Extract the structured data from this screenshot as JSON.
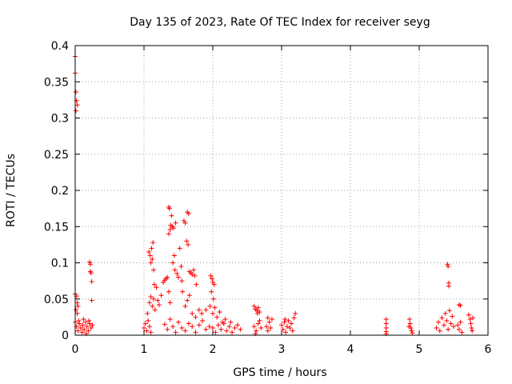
{
  "chart_data": {
    "type": "scatter",
    "title": "Day 135 of 2023, Rate Of TEC Index for receiver seyg",
    "xlabel": "GPS time / hours",
    "ylabel": "ROTI / TECUs",
    "xlim": [
      0,
      6
    ],
    "ylim": [
      0,
      0.4
    ],
    "x_ticks": [
      0,
      1,
      2,
      3,
      4,
      5,
      6
    ],
    "y_ticks": [
      0,
      0.05,
      0.1,
      0.15,
      0.2,
      0.25,
      0.3,
      0.35,
      0.4
    ],
    "x_tick_labels": [
      "0",
      "1",
      "2",
      "3",
      "4",
      "5",
      "6"
    ],
    "y_tick_labels": [
      "0",
      "0.05",
      "0.1",
      "0.15",
      "0.2",
      "0.25",
      "0.3",
      "0.35",
      "0.4"
    ],
    "grid": true,
    "marker": "plus",
    "color": "#ff0000",
    "points": [
      [
        0.0,
        0.385
      ],
      [
        0.0,
        0.362
      ],
      [
        0.01,
        0.336
      ],
      [
        0.02,
        0.324
      ],
      [
        0.03,
        0.318
      ],
      [
        0.01,
        0.31
      ],
      [
        0.0,
        0.057
      ],
      [
        0.02,
        0.054
      ],
      [
        0.03,
        0.045
      ],
      [
        0.04,
        0.04
      ],
      [
        0.01,
        0.035
      ],
      [
        0.03,
        0.03
      ],
      [
        0.0,
        0.018
      ],
      [
        0.02,
        0.012
      ],
      [
        0.04,
        0.006
      ],
      [
        0.06,
        0.016
      ],
      [
        0.08,
        0.01
      ],
      [
        0.1,
        0.004
      ],
      [
        0.11,
        0.014
      ],
      [
        0.13,
        0.008
      ],
      [
        0.15,
        0.018
      ],
      [
        0.17,
        0.012
      ],
      [
        0.19,
        0.006
      ],
      [
        0.21,
        0.016
      ],
      [
        0.23,
        0.01
      ],
      [
        0.25,
        0.014
      ],
      [
        0.05,
        0.02
      ],
      [
        0.12,
        0.022
      ],
      [
        0.2,
        0.02
      ],
      [
        0.16,
        0.002
      ],
      [
        0.21,
        0.101
      ],
      [
        0.22,
        0.098
      ],
      [
        0.22,
        0.088
      ],
      [
        0.23,
        0.086
      ],
      [
        0.24,
        0.074
      ],
      [
        0.24,
        0.048
      ],
      [
        1.0,
        0.01
      ],
      [
        1.02,
        0.016
      ],
      [
        1.04,
        0.006
      ],
      [
        1.06,
        0.02
      ],
      [
        1.08,
        0.012
      ],
      [
        1.1,
        0.004
      ],
      [
        1.05,
        0.03
      ],
      [
        1.08,
        0.045
      ],
      [
        1.1,
        0.053
      ],
      [
        1.12,
        0.04
      ],
      [
        1.14,
        0.05
      ],
      [
        1.16,
        0.035
      ],
      [
        1.07,
        0.115
      ],
      [
        1.09,
        0.11
      ],
      [
        1.11,
        0.12
      ],
      [
        1.13,
        0.128
      ],
      [
        1.12,
        0.105
      ],
      [
        1.1,
        0.1
      ],
      [
        1.14,
        0.09
      ],
      [
        1.15,
        0.07
      ],
      [
        1.18,
        0.066
      ],
      [
        1.2,
        0.048
      ],
      [
        1.22,
        0.042
      ],
      [
        1.25,
        0.055
      ],
      [
        1.28,
        0.073
      ],
      [
        1.3,
        0.076
      ],
      [
        1.32,
        0.078
      ],
      [
        1.34,
        0.08
      ],
      [
        1.36,
        0.06
      ],
      [
        1.38,
        0.045
      ],
      [
        1.3,
        0.015
      ],
      [
        1.34,
        0.008
      ],
      [
        1.38,
        0.022
      ],
      [
        1.42,
        0.012
      ],
      [
        1.46,
        0.004
      ],
      [
        1.5,
        0.018
      ],
      [
        1.36,
        0.14
      ],
      [
        1.38,
        0.146
      ],
      [
        1.39,
        0.152
      ],
      [
        1.41,
        0.15
      ],
      [
        1.43,
        0.148
      ],
      [
        1.46,
        0.155
      ],
      [
        1.36,
        0.177
      ],
      [
        1.37,
        0.175
      ],
      [
        1.4,
        0.165
      ],
      [
        1.42,
        0.1
      ],
      [
        1.45,
        0.09
      ],
      [
        1.44,
        0.11
      ],
      [
        1.48,
        0.085
      ],
      [
        1.5,
        0.08
      ],
      [
        1.52,
        0.12
      ],
      [
        1.54,
        0.095
      ],
      [
        1.55,
        0.075
      ],
      [
        1.56,
        0.06
      ],
      [
        1.58,
        0.158
      ],
      [
        1.6,
        0.155
      ],
      [
        1.63,
        0.17
      ],
      [
        1.65,
        0.168
      ],
      [
        1.62,
        0.13
      ],
      [
        1.64,
        0.125
      ],
      [
        1.66,
        0.088
      ],
      [
        1.68,
        0.086
      ],
      [
        1.7,
        0.084
      ],
      [
        1.72,
        0.09
      ],
      [
        1.74,
        0.082
      ],
      [
        1.76,
        0.07
      ],
      [
        1.6,
        0.04
      ],
      [
        1.63,
        0.048
      ],
      [
        1.66,
        0.055
      ],
      [
        1.7,
        0.03
      ],
      [
        1.75,
        0.025
      ],
      [
        1.8,
        0.035
      ],
      [
        1.55,
        0.01
      ],
      [
        1.6,
        0.006
      ],
      [
        1.65,
        0.016
      ],
      [
        1.7,
        0.012
      ],
      [
        1.75,
        0.004
      ],
      [
        1.8,
        0.014
      ],
      [
        1.85,
        0.02
      ],
      [
        1.9,
        0.008
      ],
      [
        1.95,
        0.012
      ],
      [
        1.84,
        0.03
      ],
      [
        1.9,
        0.035
      ],
      [
        1.96,
        0.04
      ],
      [
        1.97,
        0.082
      ],
      [
        1.99,
        0.078
      ],
      [
        2.0,
        0.073
      ],
      [
        2.02,
        0.07
      ],
      [
        1.98,
        0.06
      ],
      [
        2.01,
        0.05
      ],
      [
        2.0,
        0.03
      ],
      [
        2.03,
        0.038
      ],
      [
        2.06,
        0.025
      ],
      [
        2.1,
        0.032
      ],
      [
        2.14,
        0.018
      ],
      [
        2.18,
        0.022
      ],
      [
        2.0,
        0.01
      ],
      [
        2.04,
        0.004
      ],
      [
        2.08,
        0.014
      ],
      [
        2.12,
        0.008
      ],
      [
        2.16,
        0.016
      ],
      [
        2.2,
        0.006
      ],
      [
        2.24,
        0.012
      ],
      [
        2.28,
        0.004
      ],
      [
        2.32,
        0.01
      ],
      [
        2.36,
        0.014
      ],
      [
        2.4,
        0.008
      ],
      [
        2.26,
        0.018
      ],
      [
        2.6,
        0.04
      ],
      [
        2.62,
        0.036
      ],
      [
        2.64,
        0.034
      ],
      [
        2.66,
        0.038
      ],
      [
        2.68,
        0.032
      ],
      [
        2.65,
        0.03
      ],
      [
        2.6,
        0.012
      ],
      [
        2.63,
        0.006
      ],
      [
        2.66,
        0.016
      ],
      [
        2.7,
        0.01
      ],
      [
        2.62,
        0.002
      ],
      [
        2.68,
        0.02
      ],
      [
        2.78,
        0.012
      ],
      [
        2.8,
        0.006
      ],
      [
        2.82,
        0.018
      ],
      [
        2.84,
        0.01
      ],
      [
        2.86,
        0.022
      ],
      [
        2.8,
        0.024
      ],
      [
        3.0,
        0.014
      ],
      [
        3.02,
        0.008
      ],
      [
        3.04,
        0.018
      ],
      [
        3.06,
        0.004
      ],
      [
        3.08,
        0.012
      ],
      [
        3.1,
        0.02
      ],
      [
        3.12,
        0.01
      ],
      [
        3.14,
        0.016
      ],
      [
        3.16,
        0.006
      ],
      [
        3.18,
        0.024
      ],
      [
        3.2,
        0.03
      ],
      [
        3.05,
        0.022
      ],
      [
        4.52,
        0.022
      ],
      [
        4.52,
        0.016
      ],
      [
        4.52,
        0.01
      ],
      [
        4.52,
        0.005
      ],
      [
        4.52,
        0.002
      ],
      [
        4.86,
        0.022
      ],
      [
        4.87,
        0.016
      ],
      [
        4.88,
        0.01
      ],
      [
        4.89,
        0.006
      ],
      [
        4.9,
        0.003
      ],
      [
        4.85,
        0.012
      ],
      [
        5.25,
        0.01
      ],
      [
        5.28,
        0.018
      ],
      [
        5.3,
        0.006
      ],
      [
        5.33,
        0.024
      ],
      [
        5.36,
        0.014
      ],
      [
        5.38,
        0.03
      ],
      [
        5.4,
        0.02
      ],
      [
        5.42,
        0.008
      ],
      [
        5.44,
        0.034
      ],
      [
        5.46,
        0.016
      ],
      [
        5.48,
        0.026
      ],
      [
        5.5,
        0.012
      ],
      [
        5.41,
        0.098
      ],
      [
        5.42,
        0.095
      ],
      [
        5.43,
        0.072
      ],
      [
        5.43,
        0.068
      ],
      [
        5.58,
        0.042
      ],
      [
        5.6,
        0.041
      ],
      [
        5.56,
        0.014
      ],
      [
        5.58,
        0.008
      ],
      [
        5.6,
        0.018
      ],
      [
        5.62,
        0.004
      ],
      [
        5.72,
        0.028
      ],
      [
        5.74,
        0.022
      ],
      [
        5.75,
        0.016
      ],
      [
        5.76,
        0.01
      ],
      [
        5.77,
        0.006
      ],
      [
        5.78,
        0.024
      ]
    ]
  }
}
